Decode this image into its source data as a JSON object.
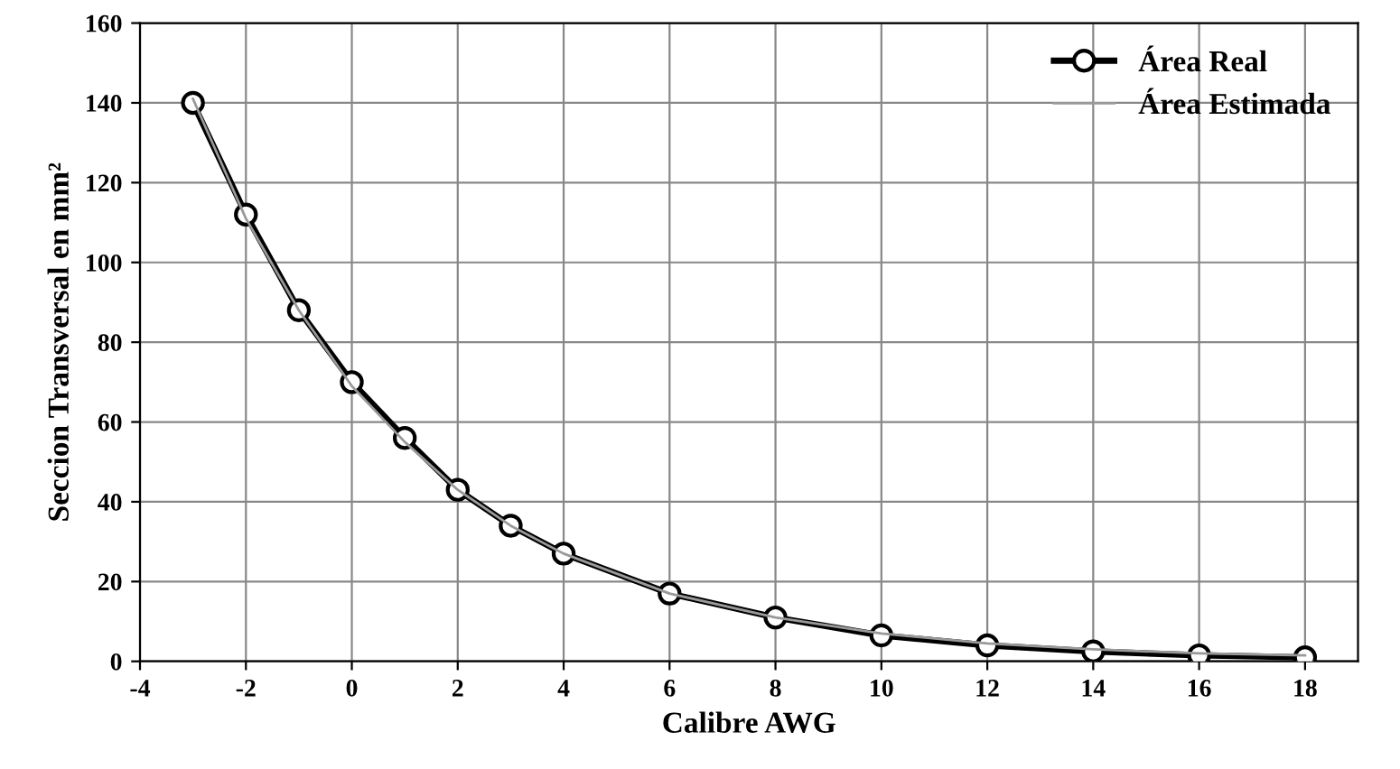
{
  "chart_data": {
    "type": "line",
    "xlabel": "Calibre AWG",
    "ylabel": "Seccion Transversal en mm²",
    "x": [
      -3,
      -2,
      -1,
      0,
      1,
      2,
      3,
      4,
      6,
      8,
      10,
      12,
      14,
      16,
      18
    ],
    "series": [
      {
        "name": "Área Real",
        "color": "#000000",
        "marker": "circle",
        "values": [
          140,
          112,
          88,
          70,
          56,
          43,
          34,
          27,
          17,
          11,
          6.5,
          4,
          2.5,
          1.5,
          1
        ]
      },
      {
        "name": "Área Estimada",
        "color": "#999999",
        "marker": "none",
        "values": [
          141,
          111,
          88,
          69,
          55,
          43,
          34,
          27,
          17,
          11,
          7,
          4.5,
          3,
          2,
          1.5
        ]
      }
    ],
    "xlim": [
      -4,
      19
    ],
    "xticks": [
      -4,
      -2,
      0,
      2,
      4,
      6,
      8,
      10,
      12,
      14,
      16,
      18
    ],
    "ylim": [
      0,
      160
    ],
    "yticks": [
      0,
      20,
      40,
      60,
      80,
      100,
      120,
      140,
      160
    ],
    "grid": true,
    "legend": "top right",
    "line_style": "solid"
  }
}
